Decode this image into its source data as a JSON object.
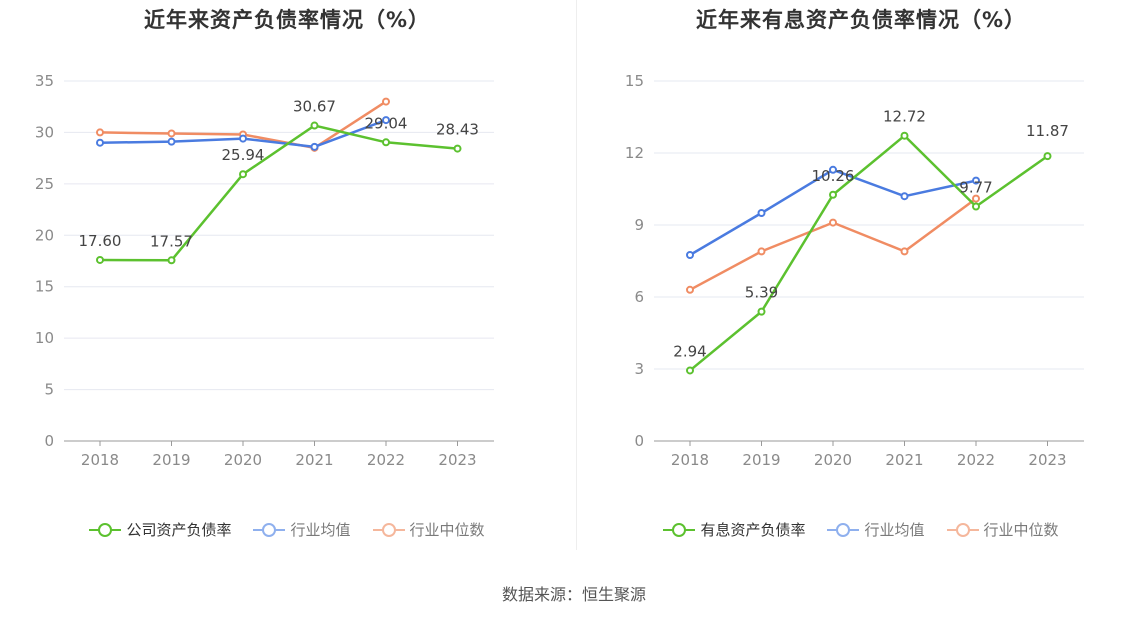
{
  "chart_data": [
    {
      "type": "line",
      "title": "近年来资产负债率情况（%）",
      "categories": [
        "2018",
        "2019",
        "2020",
        "2021",
        "2022",
        "2023"
      ],
      "ylim": [
        0,
        35
      ],
      "yticks": [
        0,
        5,
        10,
        15,
        20,
        25,
        30,
        35
      ],
      "grid": true,
      "legend_position": "bottom",
      "series": [
        {
          "name": "公司资产负债率",
          "color": "#5cc12f",
          "values": [
            17.6,
            17.57,
            25.94,
            30.67,
            29.04,
            28.43
          ],
          "labels": [
            "17.60",
            "17.57",
            "25.94",
            "30.67",
            "29.04",
            "28.43"
          ]
        },
        {
          "name": "行业均值",
          "color": "#4a7be0",
          "values": [
            29.0,
            29.1,
            29.4,
            28.6,
            31.2,
            null
          ]
        },
        {
          "name": "行业中位数",
          "color": "#f08c63",
          "values": [
            30.0,
            29.9,
            29.8,
            28.5,
            33.0,
            null
          ]
        }
      ]
    },
    {
      "type": "line",
      "title": "近年来有息资产负债率情况（%）",
      "categories": [
        "2018",
        "2019",
        "2020",
        "2021",
        "2022",
        "2023"
      ],
      "ylim": [
        0,
        15
      ],
      "yticks": [
        0,
        3,
        6,
        9,
        12,
        15
      ],
      "grid": true,
      "legend_position": "bottom",
      "series": [
        {
          "name": "有息资产负债率",
          "color": "#5cc12f",
          "values": [
            2.94,
            5.39,
            10.26,
            12.72,
            9.77,
            11.87
          ],
          "labels": [
            "2.94",
            "5.39",
            "10.26",
            "12.72",
            "9.77",
            "11.87"
          ]
        },
        {
          "name": "行业均值",
          "color": "#4a7be0",
          "values": [
            7.75,
            9.5,
            11.3,
            10.2,
            10.85,
            null
          ]
        },
        {
          "name": "行业中位数",
          "color": "#f08c63",
          "values": [
            6.3,
            7.9,
            9.1,
            7.9,
            10.1,
            null
          ]
        }
      ]
    }
  ],
  "source_text": "数据来源：恒生聚源"
}
